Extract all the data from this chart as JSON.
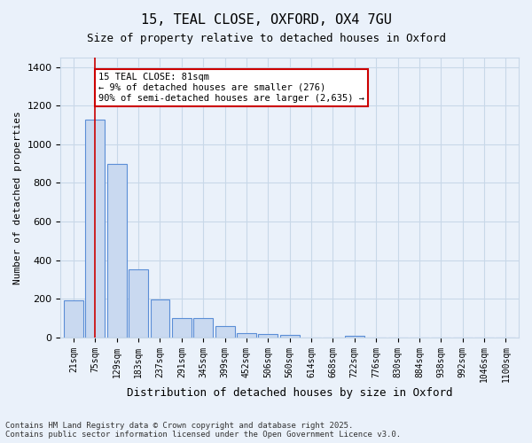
{
  "title1": "15, TEAL CLOSE, OXFORD, OX4 7GU",
  "title2": "Size of property relative to detached houses in Oxford",
  "xlabel": "Distribution of detached houses by size in Oxford",
  "ylabel": "Number of detached properties",
  "categories": [
    "21sqm",
    "75sqm",
    "129sqm",
    "183sqm",
    "237sqm",
    "291sqm",
    "345sqm",
    "399sqm",
    "452sqm",
    "506sqm",
    "560sqm",
    "614sqm",
    "668sqm",
    "722sqm",
    "776sqm",
    "830sqm",
    "884sqm",
    "938sqm",
    "992sqm",
    "1046sqm",
    "1100sqm"
  ],
  "values": [
    190,
    1130,
    900,
    350,
    195,
    100,
    100,
    60,
    22,
    18,
    13,
    0,
    0,
    8,
    0,
    0,
    0,
    0,
    0,
    0,
    0
  ],
  "bar_color": "#c9d9f0",
  "bar_edge_color": "#5b8ed6",
  "grid_color": "#c8d8e8",
  "background_color": "#eaf1fa",
  "vline_x": 1,
  "vline_color": "#cc0000",
  "annotation_text": "15 TEAL CLOSE: 81sqm\n← 9% of detached houses are smaller (276)\n90% of semi-detached houses are larger (2,635) →",
  "annotation_box_color": "#ffffff",
  "annotation_box_edge": "#cc0000",
  "ylim": [
    0,
    1450
  ],
  "yticks": [
    0,
    200,
    400,
    600,
    800,
    1000,
    1200,
    1400
  ],
  "footer": "Contains HM Land Registry data © Crown copyright and database right 2025.\nContains public sector information licensed under the Open Government Licence v3.0."
}
